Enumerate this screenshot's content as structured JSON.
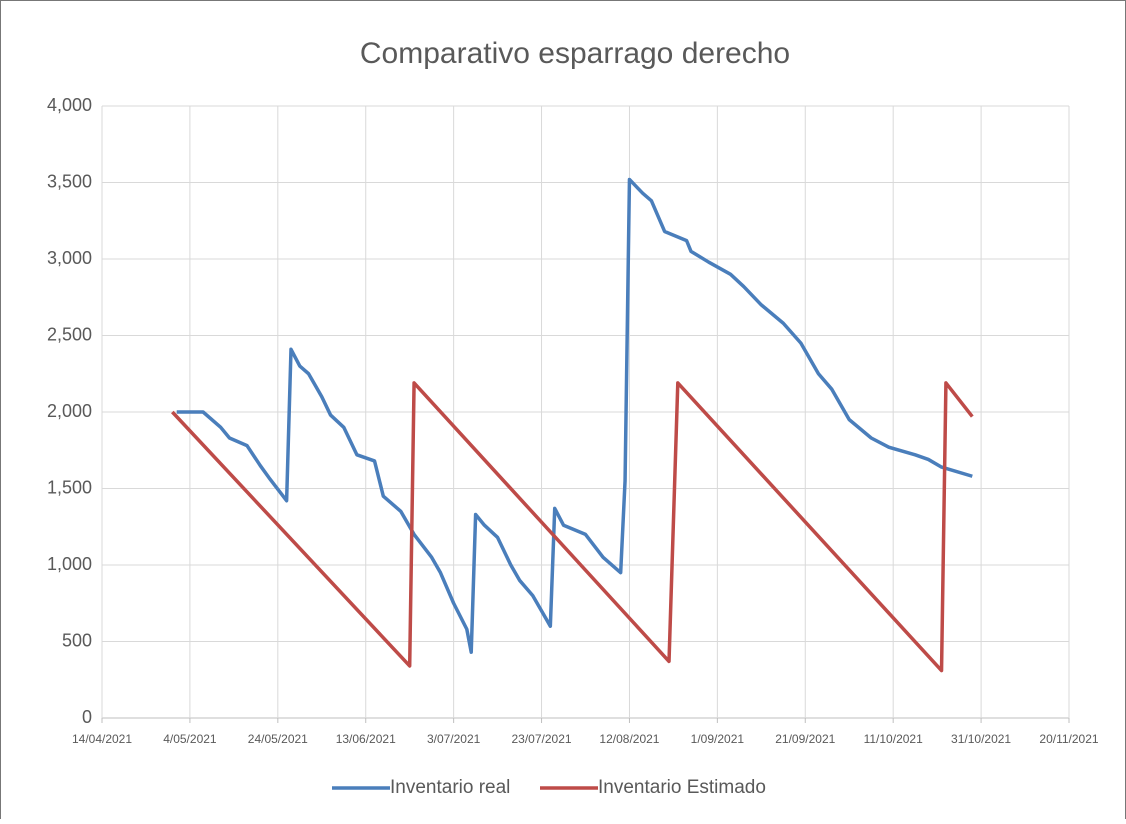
{
  "chart_data": {
    "type": "line",
    "title": "Comparativo esparrago derecho",
    "xlim": [
      "2021-04-14",
      "2021-11-20"
    ],
    "xticks": [
      {
        "value": "2021-04-14",
        "label": "14/04/2021"
      },
      {
        "value": "2021-05-04",
        "label": "4/05/2021"
      },
      {
        "value": "2021-05-24",
        "label": "24/05/2021"
      },
      {
        "value": "2021-06-13",
        "label": "13/06/2021"
      },
      {
        "value": "2021-07-03",
        "label": "3/07/2021"
      },
      {
        "value": "2021-07-23",
        "label": "23/07/2021"
      },
      {
        "value": "2021-08-12",
        "label": "12/08/2021"
      },
      {
        "value": "2021-09-01",
        "label": "1/09/2021"
      },
      {
        "value": "2021-09-21",
        "label": "21/09/2021"
      },
      {
        "value": "2021-10-11",
        "label": "11/10/2021"
      },
      {
        "value": "2021-10-31",
        "label": "31/10/2021"
      },
      {
        "value": "2021-11-20",
        "label": "20/11/2021"
      }
    ],
    "ylim": [
      0,
      4000
    ],
    "yticks": [
      0,
      500,
      {
        "value": 1000,
        "label": "1,000"
      },
      {
        "value": 1500,
        "label": "1,500"
      },
      {
        "value": 2000,
        "label": "2,000"
      },
      {
        "value": 2500,
        "label": "2,500"
      },
      {
        "value": 3000,
        "label": "3,000"
      },
      {
        "value": 3500,
        "label": "3,500"
      },
      {
        "value": 4000,
        "label": "4,000"
      }
    ],
    "grid": true,
    "legend": "bottom",
    "series": [
      {
        "name": "Inventario real",
        "color": "#4a7ebb",
        "x": [
          "2021-05-01",
          "2021-05-07",
          "2021-05-11",
          "2021-05-13",
          "2021-05-17",
          "2021-05-20",
          "2021-05-22",
          "2021-05-26",
          "2021-05-27",
          "2021-05-29",
          "2021-05-31",
          "2021-06-03",
          "2021-06-05",
          "2021-06-08",
          "2021-06-11",
          "2021-06-15",
          "2021-06-17",
          "2021-06-21",
          "2021-06-24",
          "2021-06-28",
          "2021-06-30",
          "2021-07-03",
          "2021-07-06",
          "2021-07-07",
          "2021-07-08",
          "2021-07-10",
          "2021-07-13",
          "2021-07-16",
          "2021-07-18",
          "2021-07-21",
          "2021-07-24",
          "2021-07-25",
          "2021-07-26",
          "2021-07-28",
          "2021-08-02",
          "2021-08-06",
          "2021-08-10",
          "2021-08-11",
          "2021-08-12",
          "2021-08-15",
          "2021-08-17",
          "2021-08-20",
          "2021-08-25",
          "2021-08-26",
          "2021-08-30",
          "2021-09-04",
          "2021-09-07",
          "2021-09-11",
          "2021-09-16",
          "2021-09-20",
          "2021-09-24",
          "2021-09-27",
          "2021-10-01",
          "2021-10-06",
          "2021-10-10",
          "2021-10-16",
          "2021-10-19",
          "2021-10-22",
          "2021-10-29"
        ],
        "values": [
          2000,
          2000,
          1900,
          1830,
          1780,
          1650,
          1570,
          1420,
          2410,
          2300,
          2250,
          2100,
          1980,
          1900,
          1720,
          1680,
          1450,
          1350,
          1200,
          1050,
          950,
          750,
          580,
          430,
          1330,
          1260,
          1180,
          1000,
          900,
          800,
          650,
          600,
          1370,
          1260,
          1200,
          1050,
          950,
          1550,
          3520,
          3430,
          3380,
          3180,
          3120,
          3050,
          2980,
          2900,
          2820,
          2700,
          2580,
          2450,
          2250,
          2150,
          1950,
          1830,
          1770,
          1720,
          1690,
          1640,
          1580
        ]
      },
      {
        "name": "Inventario Estimado",
        "color": "#be4b48",
        "x": [
          "2021-04-30",
          "2021-06-23",
          "2021-06-24",
          "2021-08-21",
          "2021-08-23",
          "2021-10-22",
          "2021-10-23",
          "2021-10-29"
        ],
        "values": [
          2000,
          340,
          2190,
          370,
          2190,
          310,
          2190,
          1970
        ]
      }
    ]
  }
}
